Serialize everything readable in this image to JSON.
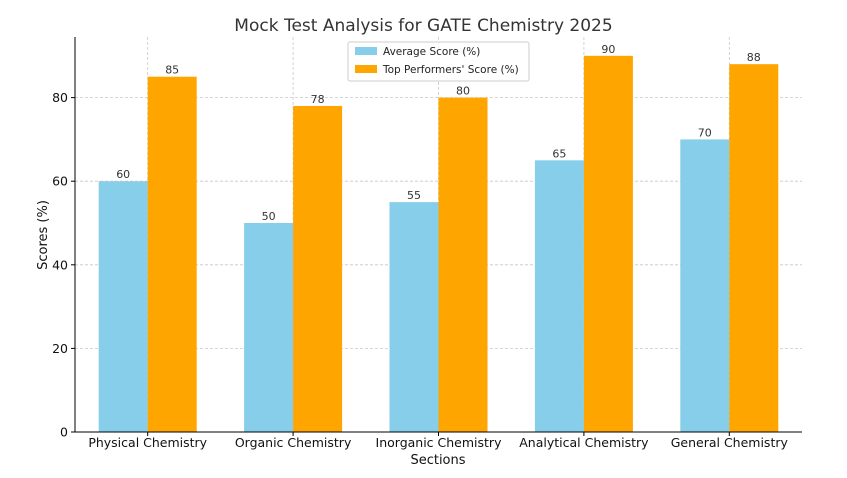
{
  "chart_data": {
    "type": "bar",
    "title": "Mock Test Analysis for GATE Chemistry 2025",
    "xlabel": "Sections",
    "ylabel": "Scores (%)",
    "categories": [
      "Physical Chemistry",
      "Organic Chemistry",
      "Inorganic Chemistry",
      "Analytical Chemistry",
      "General Chemistry"
    ],
    "series": [
      {
        "name": "Average Score (%)",
        "values": [
          60,
          50,
          55,
          65,
          70
        ],
        "color": "#87CEEB"
      },
      {
        "name": "Top Performers' Score (%)",
        "values": [
          85,
          78,
          80,
          90,
          88
        ],
        "color": "#FFA500"
      }
    ],
    "ylim": [
      0,
      94.5
    ],
    "yticks": [
      0,
      20,
      40,
      60,
      80
    ],
    "grid": true,
    "legend_position": "top-center"
  }
}
